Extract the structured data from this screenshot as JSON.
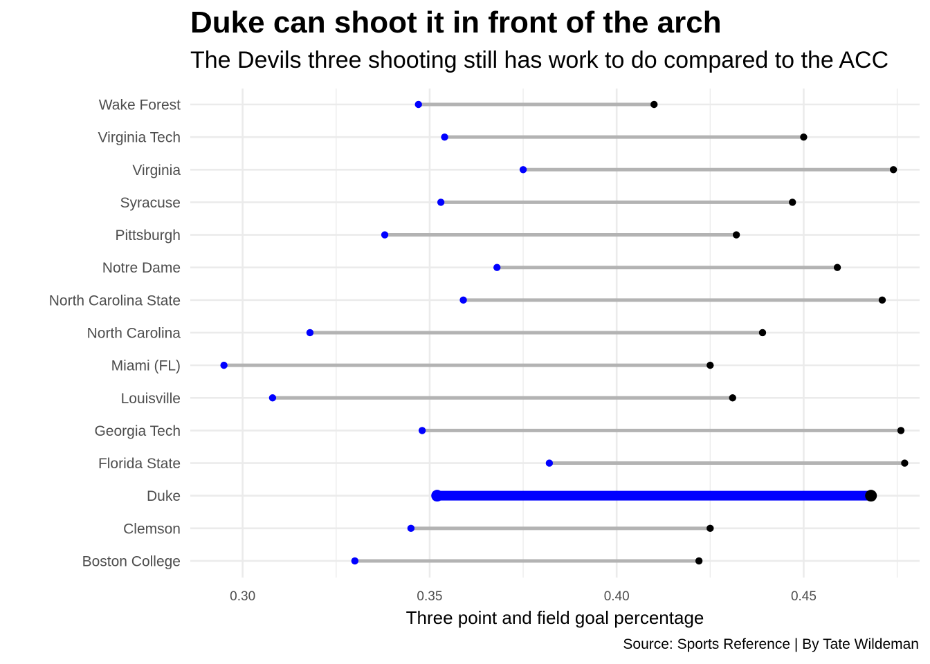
{
  "chart_data": {
    "type": "dumbbell",
    "title": "Duke can shoot it in front of the arch",
    "subtitle": "The Devils three shooting still has work to do compared to the ACC",
    "caption": "Source: Sports Reference | By Tate Wildeman",
    "xlabel": "Three point and field goal percentage",
    "ylabel": "",
    "xlim": [
      0.286,
      0.481
    ],
    "xticks": [
      "0.30",
      "0.35",
      "0.40",
      "0.45"
    ],
    "xtick_values": [
      0.3,
      0.35,
      0.4,
      0.45
    ],
    "grid": true,
    "highlight": "Duke",
    "colors": {
      "three_point": "#0000ff",
      "field_goal": "#000000",
      "segment": "#b3b3b3",
      "highlight_segment": "#0000ff"
    },
    "categories": [
      "Wake Forest",
      "Virginia Tech",
      "Virginia",
      "Syracuse",
      "Pittsburgh",
      "Notre Dame",
      "North Carolina State",
      "North Carolina",
      "Miami (FL)",
      "Louisville",
      "Georgia Tech",
      "Florida State",
      "Duke",
      "Clemson",
      "Boston College"
    ],
    "series": [
      {
        "key": "three_point",
        "values": [
          0.347,
          0.354,
          0.375,
          0.353,
          0.338,
          0.368,
          0.359,
          0.318,
          0.295,
          0.308,
          0.348,
          0.382,
          0.352,
          0.345,
          0.33
        ]
      },
      {
        "key": "field_goal",
        "values": [
          0.41,
          0.45,
          0.474,
          0.447,
          0.432,
          0.459,
          0.471,
          0.439,
          0.425,
          0.431,
          0.476,
          0.477,
          0.468,
          0.425,
          0.422
        ]
      }
    ]
  }
}
